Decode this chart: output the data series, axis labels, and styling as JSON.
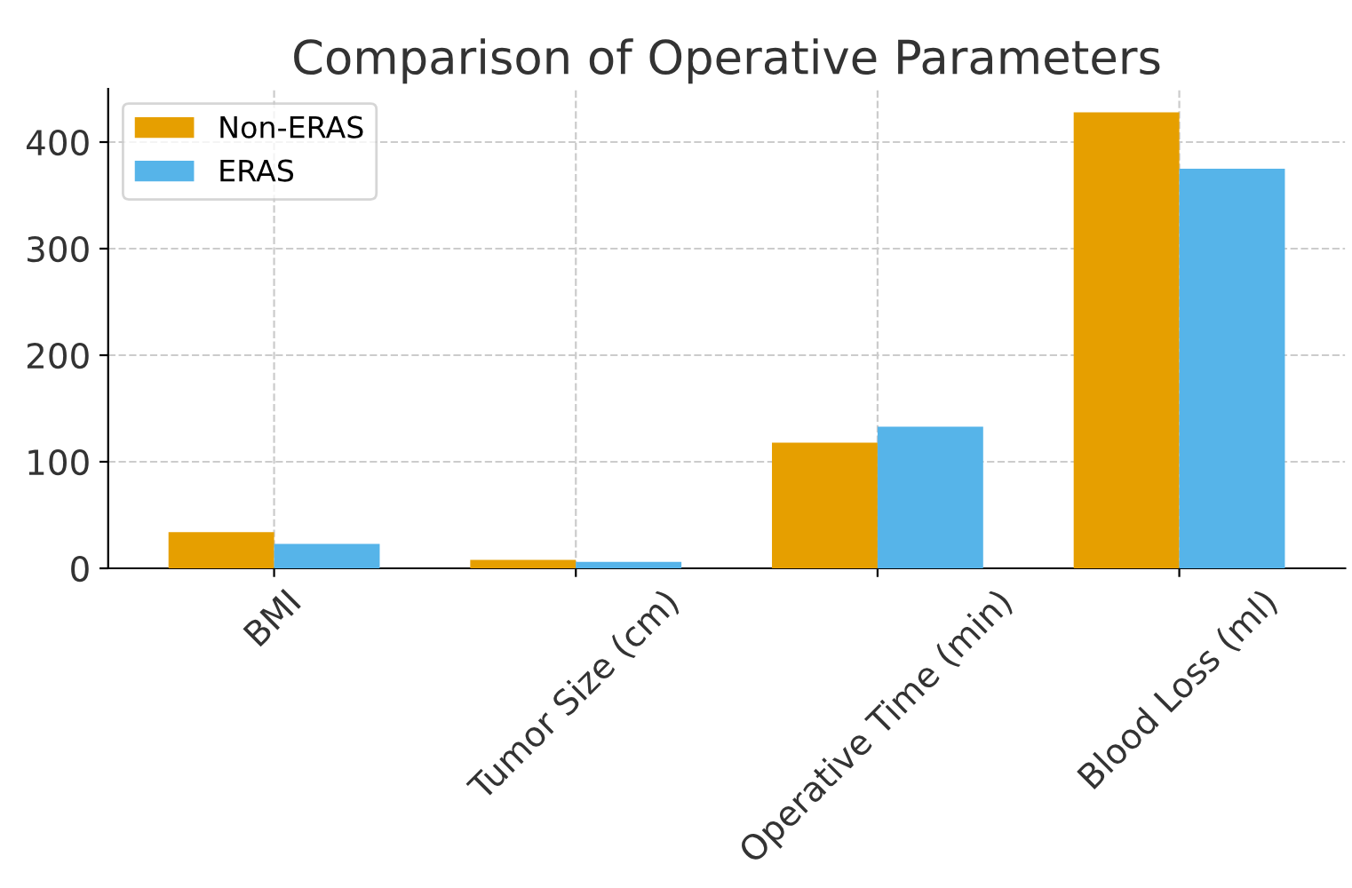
{
  "chart_data": {
    "type": "bar",
    "title": "Comparison of Operative Parameters",
    "categories": [
      "BMI",
      "Tumor Size (cm)",
      "Operative Time (min)",
      "Blood Loss (ml)"
    ],
    "series": [
      {
        "name": "Non-ERAS",
        "color": "#e69f00",
        "values": [
          34,
          8,
          118,
          428
        ]
      },
      {
        "name": "ERAS",
        "color": "#56b4e9",
        "values": [
          23,
          6,
          133,
          375
        ]
      }
    ],
    "ylim": [
      0,
      450
    ],
    "yticks": [
      0,
      100,
      200,
      300,
      400
    ],
    "grid": true,
    "legend": "top left"
  }
}
